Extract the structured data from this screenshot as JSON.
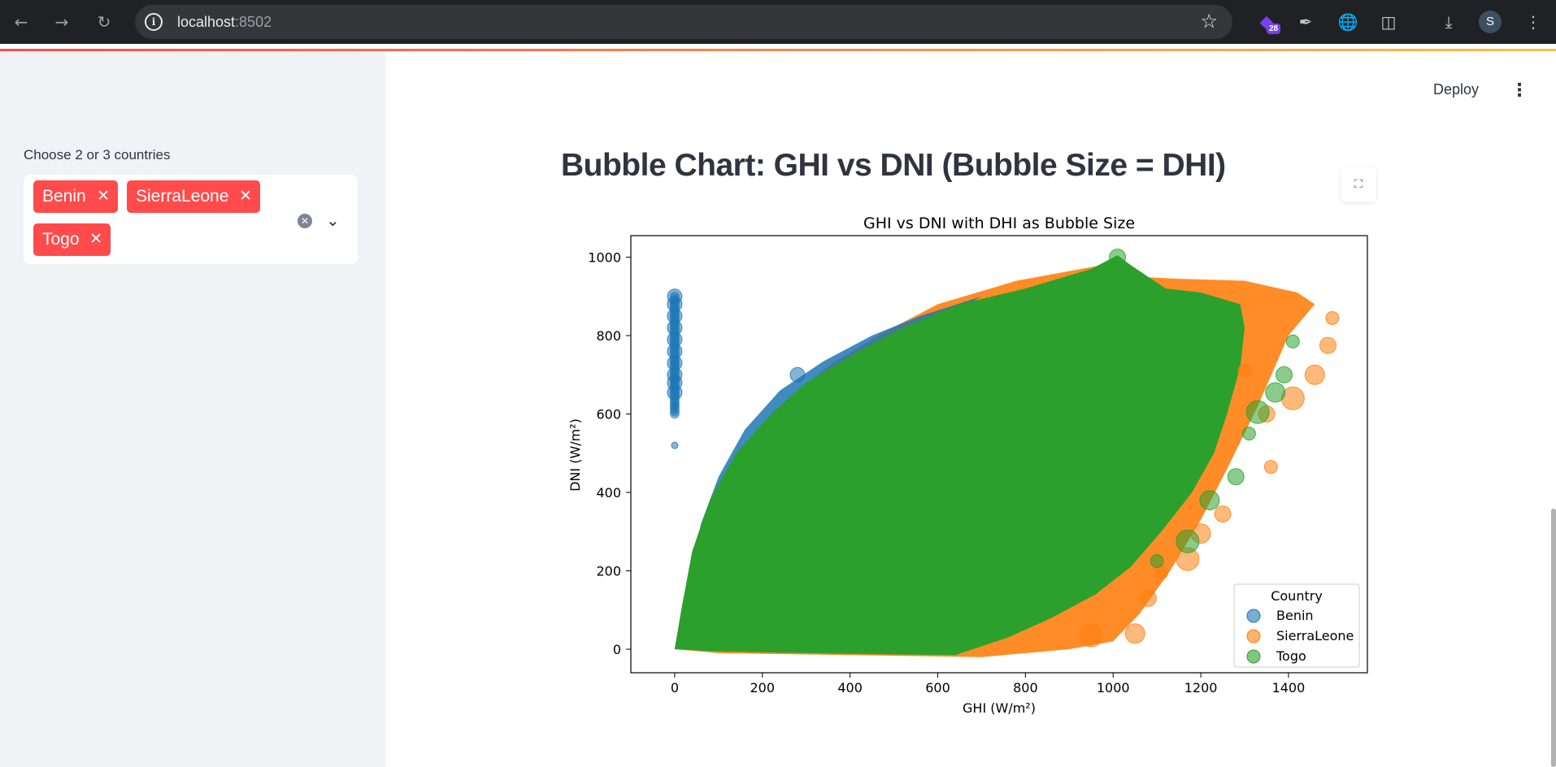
{
  "browser": {
    "url_host": "localhost",
    "url_port": ":8502",
    "extension_badge": "28",
    "profile_initial": "S"
  },
  "sidebar": {
    "label": "Choose 2 or 3 countries",
    "selected": [
      "Benin",
      "SierraLeone",
      "Togo"
    ]
  },
  "toolbar": {
    "deploy_label": "Deploy"
  },
  "main": {
    "title": "Bubble Chart: GHI vs DNI (Bubble Size = DHI)"
  },
  "chart_data": {
    "type": "scatter",
    "title": "GHI vs DNI with DHI as Bubble Size",
    "xlabel": "GHI (W/m²)",
    "ylabel": "DNI (W/m²)",
    "xlim": [
      -100,
      1580
    ],
    "ylim": [
      -60,
      1055
    ],
    "xticks": [
      0,
      200,
      400,
      600,
      800,
      1000,
      1200,
      1400
    ],
    "yticks": [
      0,
      200,
      400,
      600,
      800,
      1000
    ],
    "legend": {
      "title": "Country",
      "placement": "lower-right"
    },
    "series": [
      {
        "name": "Benin",
        "color": "#1f77b4",
        "outliers": [
          [
            0,
            900
          ],
          [
            0,
            880
          ],
          [
            0,
            850
          ],
          [
            0,
            820
          ],
          [
            0,
            790
          ],
          [
            0,
            760
          ],
          [
            0,
            730
          ],
          [
            0,
            700
          ],
          [
            0,
            680
          ],
          [
            0,
            655
          ],
          [
            0,
            620
          ],
          [
            0,
            520
          ],
          [
            280,
            700
          ]
        ]
      },
      {
        "name": "SierraLeone",
        "color": "#ff7f0e",
        "outliers": [
          [
            1500,
            845
          ],
          [
            1490,
            775
          ],
          [
            1460,
            700
          ],
          [
            1410,
            640
          ],
          [
            1360,
            465
          ],
          [
            1250,
            345
          ],
          [
            1200,
            295
          ],
          [
            1170,
            230
          ],
          [
            1110,
            195
          ],
          [
            1080,
            130
          ],
          [
            1050,
            40
          ],
          [
            950,
            35
          ],
          [
            1300,
            710
          ],
          [
            1350,
            600
          ]
        ]
      },
      {
        "name": "Togo",
        "color": "#2ca02c",
        "outliers": [
          [
            1410,
            785
          ],
          [
            1390,
            700
          ],
          [
            1370,
            655
          ],
          [
            1330,
            605
          ],
          [
            1310,
            550
          ],
          [
            1280,
            440
          ],
          [
            1220,
            380
          ],
          [
            1170,
            275
          ],
          [
            1100,
            225
          ],
          [
            1010,
            1000
          ]
        ]
      }
    ]
  }
}
